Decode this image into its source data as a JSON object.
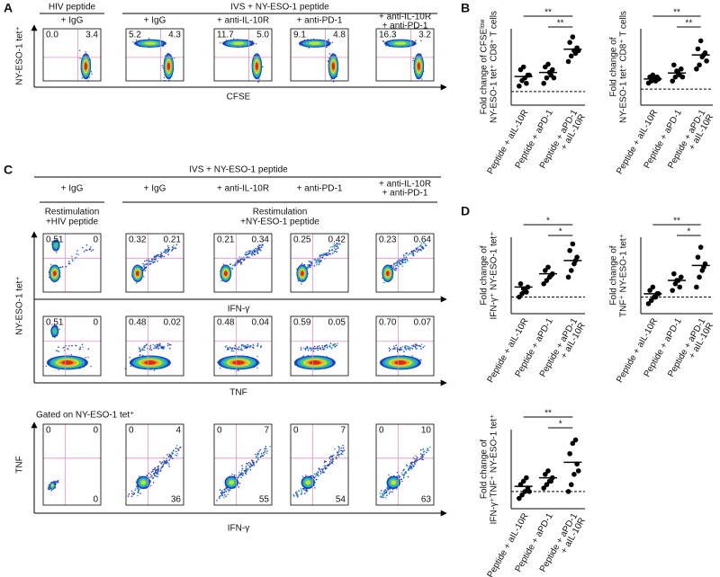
{
  "panel_a": {
    "label": "A",
    "group_headers": [
      "HIV peptide",
      "IVS + NY-ESO-1 peptide"
    ],
    "columns": [
      [
        "+ IgG"
      ],
      [
        "+ IgG"
      ],
      [
        "+ anti-IL-10R"
      ],
      [
        "+ anti-PD-1"
      ],
      [
        "+ anti-IL-10R",
        "+ anti-PD-1"
      ]
    ],
    "quadrants": [
      [
        "0.0",
        "3.4"
      ],
      [
        "5.2",
        "4.3"
      ],
      [
        "11.7",
        "5.0"
      ],
      [
        "9.1",
        "4.8"
      ],
      [
        "16.3",
        "3.2"
      ]
    ],
    "x_axis": "CFSE",
    "y_axis": "NY-ESO-1 tet⁺"
  },
  "panel_b": {
    "label": "B"
  },
  "panel_c": {
    "label": "C",
    "header": "IVS + NY-ESO-1 peptide",
    "columns": [
      [
        "+ IgG"
      ],
      [
        "+ IgG"
      ],
      [
        "+ anti-IL-10R"
      ],
      [
        "+ anti-PD-1"
      ],
      [
        "+ anti-IL-10R",
        "+ anti-PD-1"
      ]
    ],
    "restimulation": [
      [
        "Restimulation",
        "+HIV peptide"
      ],
      [
        "Restimulation",
        "+NY-ESO-1 peptide"
      ]
    ],
    "y_axis": "NY-ESO-1 tet⁺",
    "rows": [
      {
        "x_axis": "IFN-γ",
        "quadrants": [
          [
            "0.51",
            "0"
          ],
          [
            "0.32",
            "0.21"
          ],
          [
            "0.21",
            "0.34"
          ],
          [
            "0.25",
            "0.42"
          ],
          [
            "0.23",
            "0.64"
          ]
        ]
      },
      {
        "x_axis": "TNF",
        "quadrants": [
          [
            "0.51",
            "0"
          ],
          [
            "0.48",
            "0.02"
          ],
          [
            "0.48",
            "0.04"
          ],
          [
            "0.59",
            "0.05"
          ],
          [
            "0.70",
            "0.07"
          ]
        ]
      }
    ],
    "gated": {
      "title": "Gated on NY-ESO-1 tet⁺",
      "x_axis": "IFN-γ",
      "y_axis": "TNF",
      "quadrants": [
        [
          "0",
          "0",
          "0"
        ],
        [
          "0",
          "4",
          "36"
        ],
        [
          "0",
          "7",
          "55"
        ],
        [
          "0",
          "7",
          "54"
        ],
        [
          "0",
          "10",
          "63"
        ]
      ]
    }
  },
  "panel_d": {
    "label": "D"
  },
  "chart_data": [
    {
      "type": "dot",
      "ylabel": [
        "Fold change of CFSEˡᵒʷ",
        "NY-ESO-1 tet⁺ CD8⁺ T cells"
      ],
      "categories": [
        "Peptide + aIL-10R",
        "Peptide + aPD-1",
        [
          "Peptide + aPD-1",
          "+ aIL-10R"
        ]
      ],
      "values": [
        [
          1.2,
          1.4,
          1.5,
          1.6,
          1.8,
          1.9,
          1.3,
          1.6
        ],
        [
          1.3,
          1.5,
          1.7,
          1.8,
          1.9,
          2.0,
          1.6,
          1.5
        ],
        [
          2.1,
          2.3,
          2.5,
          2.6,
          2.8,
          3.0,
          2.4,
          2.5
        ]
      ],
      "means": [
        1.55,
        1.7,
        2.55
      ],
      "ylim": [
        0.5,
        3.3
      ],
      "reference_line": 1,
      "significance": [
        {
          "groups": [
            0,
            2
          ],
          "label": "**"
        },
        {
          "groups": [
            1,
            2
          ],
          "label": "**"
        }
      ]
    },
    {
      "type": "dot",
      "ylabel": [
        "Fold change of",
        "NY-ESO-1 tet⁺ CD8⁺ T cells"
      ],
      "categories": [
        "Peptide + aIL-10R",
        "Peptide + aPD-1",
        [
          "Peptide + aPD-1",
          "+ aIL-10R"
        ]
      ],
      "values": [
        [
          1.15,
          1.2,
          1.25,
          1.3,
          1.3,
          1.35,
          1.2,
          1.25
        ],
        [
          1.2,
          1.3,
          1.4,
          1.5,
          1.6,
          1.45,
          1.35,
          1.3
        ],
        [
          1.5,
          1.6,
          1.8,
          1.9,
          2.0,
          2.2,
          1.85,
          1.7
        ]
      ],
      "means": [
        1.25,
        1.4,
        1.85
      ],
      "ylim": [
        0.6,
        2.5
      ],
      "reference_line": 1,
      "significance": [
        {
          "groups": [
            0,
            2
          ],
          "label": "**"
        },
        {
          "groups": [
            1,
            2
          ],
          "label": "**"
        }
      ]
    },
    {
      "type": "dot",
      "ylabel": [
        "Fold change of",
        "IFN-γ⁺ NY-ESO-1 tet⁺"
      ],
      "categories": [
        "Peptide + aIL-10R",
        "Peptide + aPD-1",
        [
          "Peptide + aPD-1",
          "+ aIL-10R"
        ]
      ],
      "values": [
        [
          1.0,
          1.1,
          1.2,
          1.3,
          1.4,
          1.25,
          1.15
        ],
        [
          1.4,
          1.5,
          1.6,
          1.7,
          1.8,
          1.9,
          1.65
        ],
        [
          1.6,
          1.8,
          2.0,
          2.2,
          2.4,
          2.6,
          2.1
        ]
      ],
      "means": [
        1.3,
        1.7,
        2.1
      ],
      "ylim": [
        0.5,
        2.8
      ],
      "reference_line": 1,
      "significance": [
        {
          "groups": [
            0,
            2
          ],
          "label": "*"
        },
        {
          "groups": [
            1,
            2
          ],
          "label": "*"
        }
      ]
    },
    {
      "type": "dot",
      "ylabel": [
        "Fold change of",
        "TNF⁺ NY-ESO-1 tet⁺"
      ],
      "categories": [
        "Peptide + aIL-10R",
        "Peptide + aPD-1",
        [
          "Peptide + aPD-1",
          "+ aIL-10R"
        ]
      ],
      "values": [
        [
          0.8,
          0.9,
          1.0,
          1.1,
          1.2,
          1.3,
          1.0,
          1.1
        ],
        [
          1.2,
          1.4,
          1.5,
          1.6,
          1.7,
          1.5,
          1.3
        ],
        [
          1.3,
          1.6,
          1.8,
          2.0,
          2.2,
          2.5,
          1.9
        ]
      ],
      "means": [
        1.1,
        1.5,
        1.95
      ],
      "ylim": [
        0.5,
        2.8
      ],
      "reference_line": 1,
      "significance": [
        {
          "groups": [
            0,
            2
          ],
          "label": "**"
        },
        {
          "groups": [
            1,
            2
          ],
          "label": "*"
        }
      ]
    },
    {
      "type": "dot",
      "ylabel": [
        "Fold change of",
        "IFN-γ⁺TNF⁺ NY-ESO-1 tet⁺"
      ],
      "categories": [
        "Peptide + aIL-10R",
        "Peptide + aPD-1",
        [
          "Peptide + aPD-1",
          "+ aIL-10R"
        ]
      ],
      "values": [
        [
          0.8,
          0.9,
          1.0,
          1.1,
          1.2,
          1.3,
          1.4,
          1.0
        ],
        [
          1.1,
          1.2,
          1.3,
          1.4,
          1.5,
          1.6,
          1.3
        ],
        [
          1.0,
          1.2,
          1.5,
          1.8,
          2.1,
          2.4,
          2.5,
          1.6
        ]
      ],
      "means": [
        1.15,
        1.4,
        1.85
      ],
      "ylim": [
        0.5,
        2.8
      ],
      "reference_line": 1,
      "significance": [
        {
          "groups": [
            0,
            2
          ],
          "label": "**"
        },
        {
          "groups": [
            1,
            2
          ],
          "label": "*"
        }
      ]
    }
  ]
}
